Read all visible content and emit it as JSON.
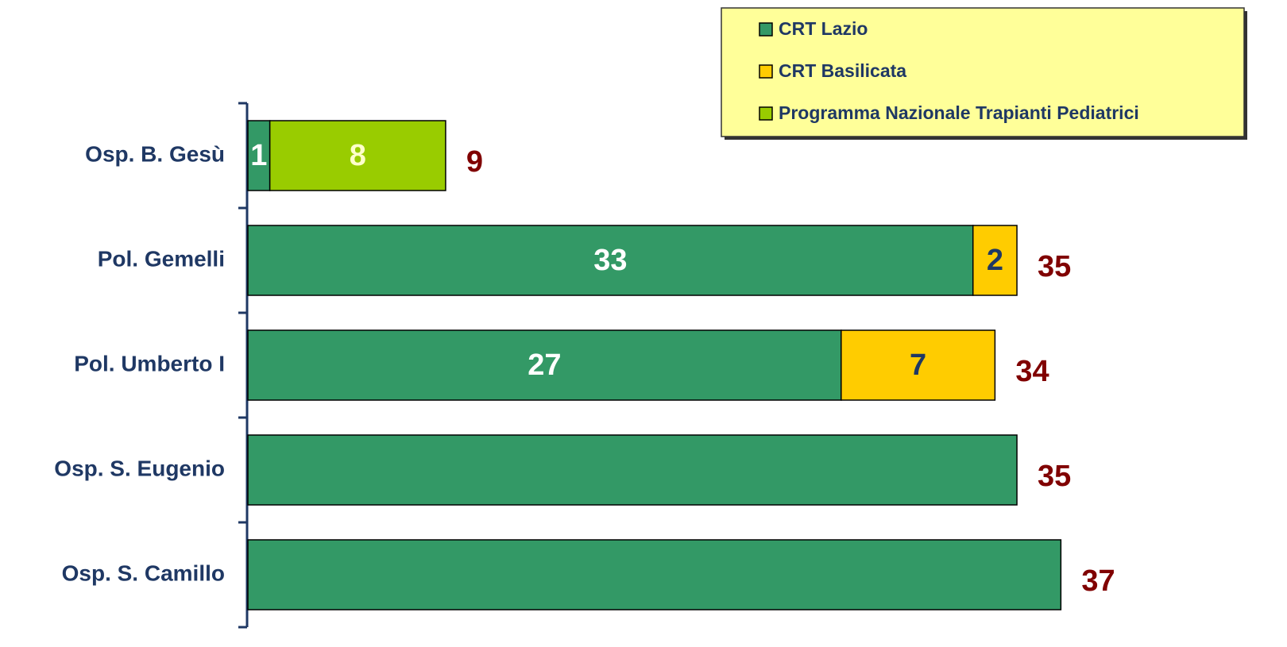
{
  "chart_data": {
    "type": "stacked-barh",
    "categories": [
      "Osp. B. Gesù",
      "Pol. Gemelli",
      "Pol. Umberto I",
      "Osp. S. Eugenio",
      "Osp. S. Camillo"
    ],
    "series": [
      {
        "name": "CRT Lazio",
        "color": "#339966",
        "label_color": "#ffffff",
        "values": [
          1,
          33,
          27,
          35,
          37
        ],
        "value_labels": [
          "1",
          "33",
          "27",
          null,
          null
        ]
      },
      {
        "name": "CRT Basilicata",
        "color": "#ffcc00",
        "label_color": "#1f3864",
        "values": [
          null,
          2,
          7,
          null,
          null
        ],
        "value_labels": [
          null,
          "2",
          "7",
          null,
          null
        ]
      },
      {
        "name": "Programma Nazionale Trapianti Pediatrici",
        "color": "#99cc00",
        "label_color": "#ffffcc",
        "values": [
          8,
          null,
          null,
          null,
          null
        ],
        "value_labels": [
          "8",
          null,
          null,
          null,
          null
        ]
      }
    ],
    "totals": [
      9,
      35,
      34,
      35,
      37
    ],
    "totals_color": "#800000",
    "xlim": [
      0,
      45.7
    ],
    "legend": "top-right"
  }
}
